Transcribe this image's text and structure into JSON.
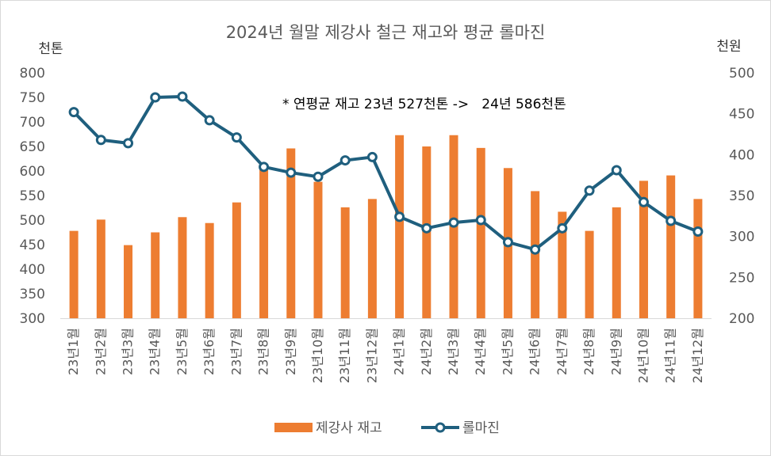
{
  "chart_data": {
    "type": "bar+line",
    "title": "2024년 월말 제강사 철근 재고와 평균 롤마진",
    "y_left_unit": "천톤",
    "y_right_unit": "천원",
    "annotation": "* 연평균 재고 23년 527천톤 ->   24년 586천톤",
    "categories": [
      "23년1월",
      "23년2월",
      "23년3월",
      "23년4월",
      "23년5월",
      "23년6월",
      "23년7월",
      "23년8월",
      "23년9월",
      "23년10월",
      "23년11월",
      "23년12월",
      "24년1월",
      "24년2월",
      "24년3월",
      "24년4월",
      "24년5월",
      "24년6월",
      "24년7월",
      "24년8월",
      "24년9월",
      "24년10월",
      "24년11월",
      "24년12월"
    ],
    "y_left": {
      "min": 300,
      "max": 800,
      "ticks": [
        300,
        350,
        400,
        450,
        500,
        550,
        600,
        650,
        700,
        750,
        800
      ]
    },
    "y_right": {
      "min": 200,
      "max": 500,
      "ticks": [
        200,
        250,
        300,
        350,
        400,
        450,
        500
      ]
    },
    "series": [
      {
        "name": "제강사 재고",
        "type": "bar",
        "axis": "left",
        "color": "#ed7d31",
        "values": [
          478,
          501,
          449,
          475,
          506,
          494,
          536,
          604,
          646,
          578,
          526,
          543,
          673,
          650,
          673,
          647,
          606,
          559,
          517,
          478,
          526,
          580,
          591,
          543
        ]
      },
      {
        "name": "롤마진",
        "type": "line",
        "axis": "right",
        "color": "#1f5f7e",
        "values": [
          452,
          418,
          414,
          470,
          471,
          442,
          421,
          385,
          378,
          373,
          393,
          397,
          324,
          310,
          317,
          320,
          293,
          284,
          310,
          356,
          381,
          342,
          319,
          306
        ]
      }
    ],
    "legend_position": "bottom",
    "grid": false
  }
}
